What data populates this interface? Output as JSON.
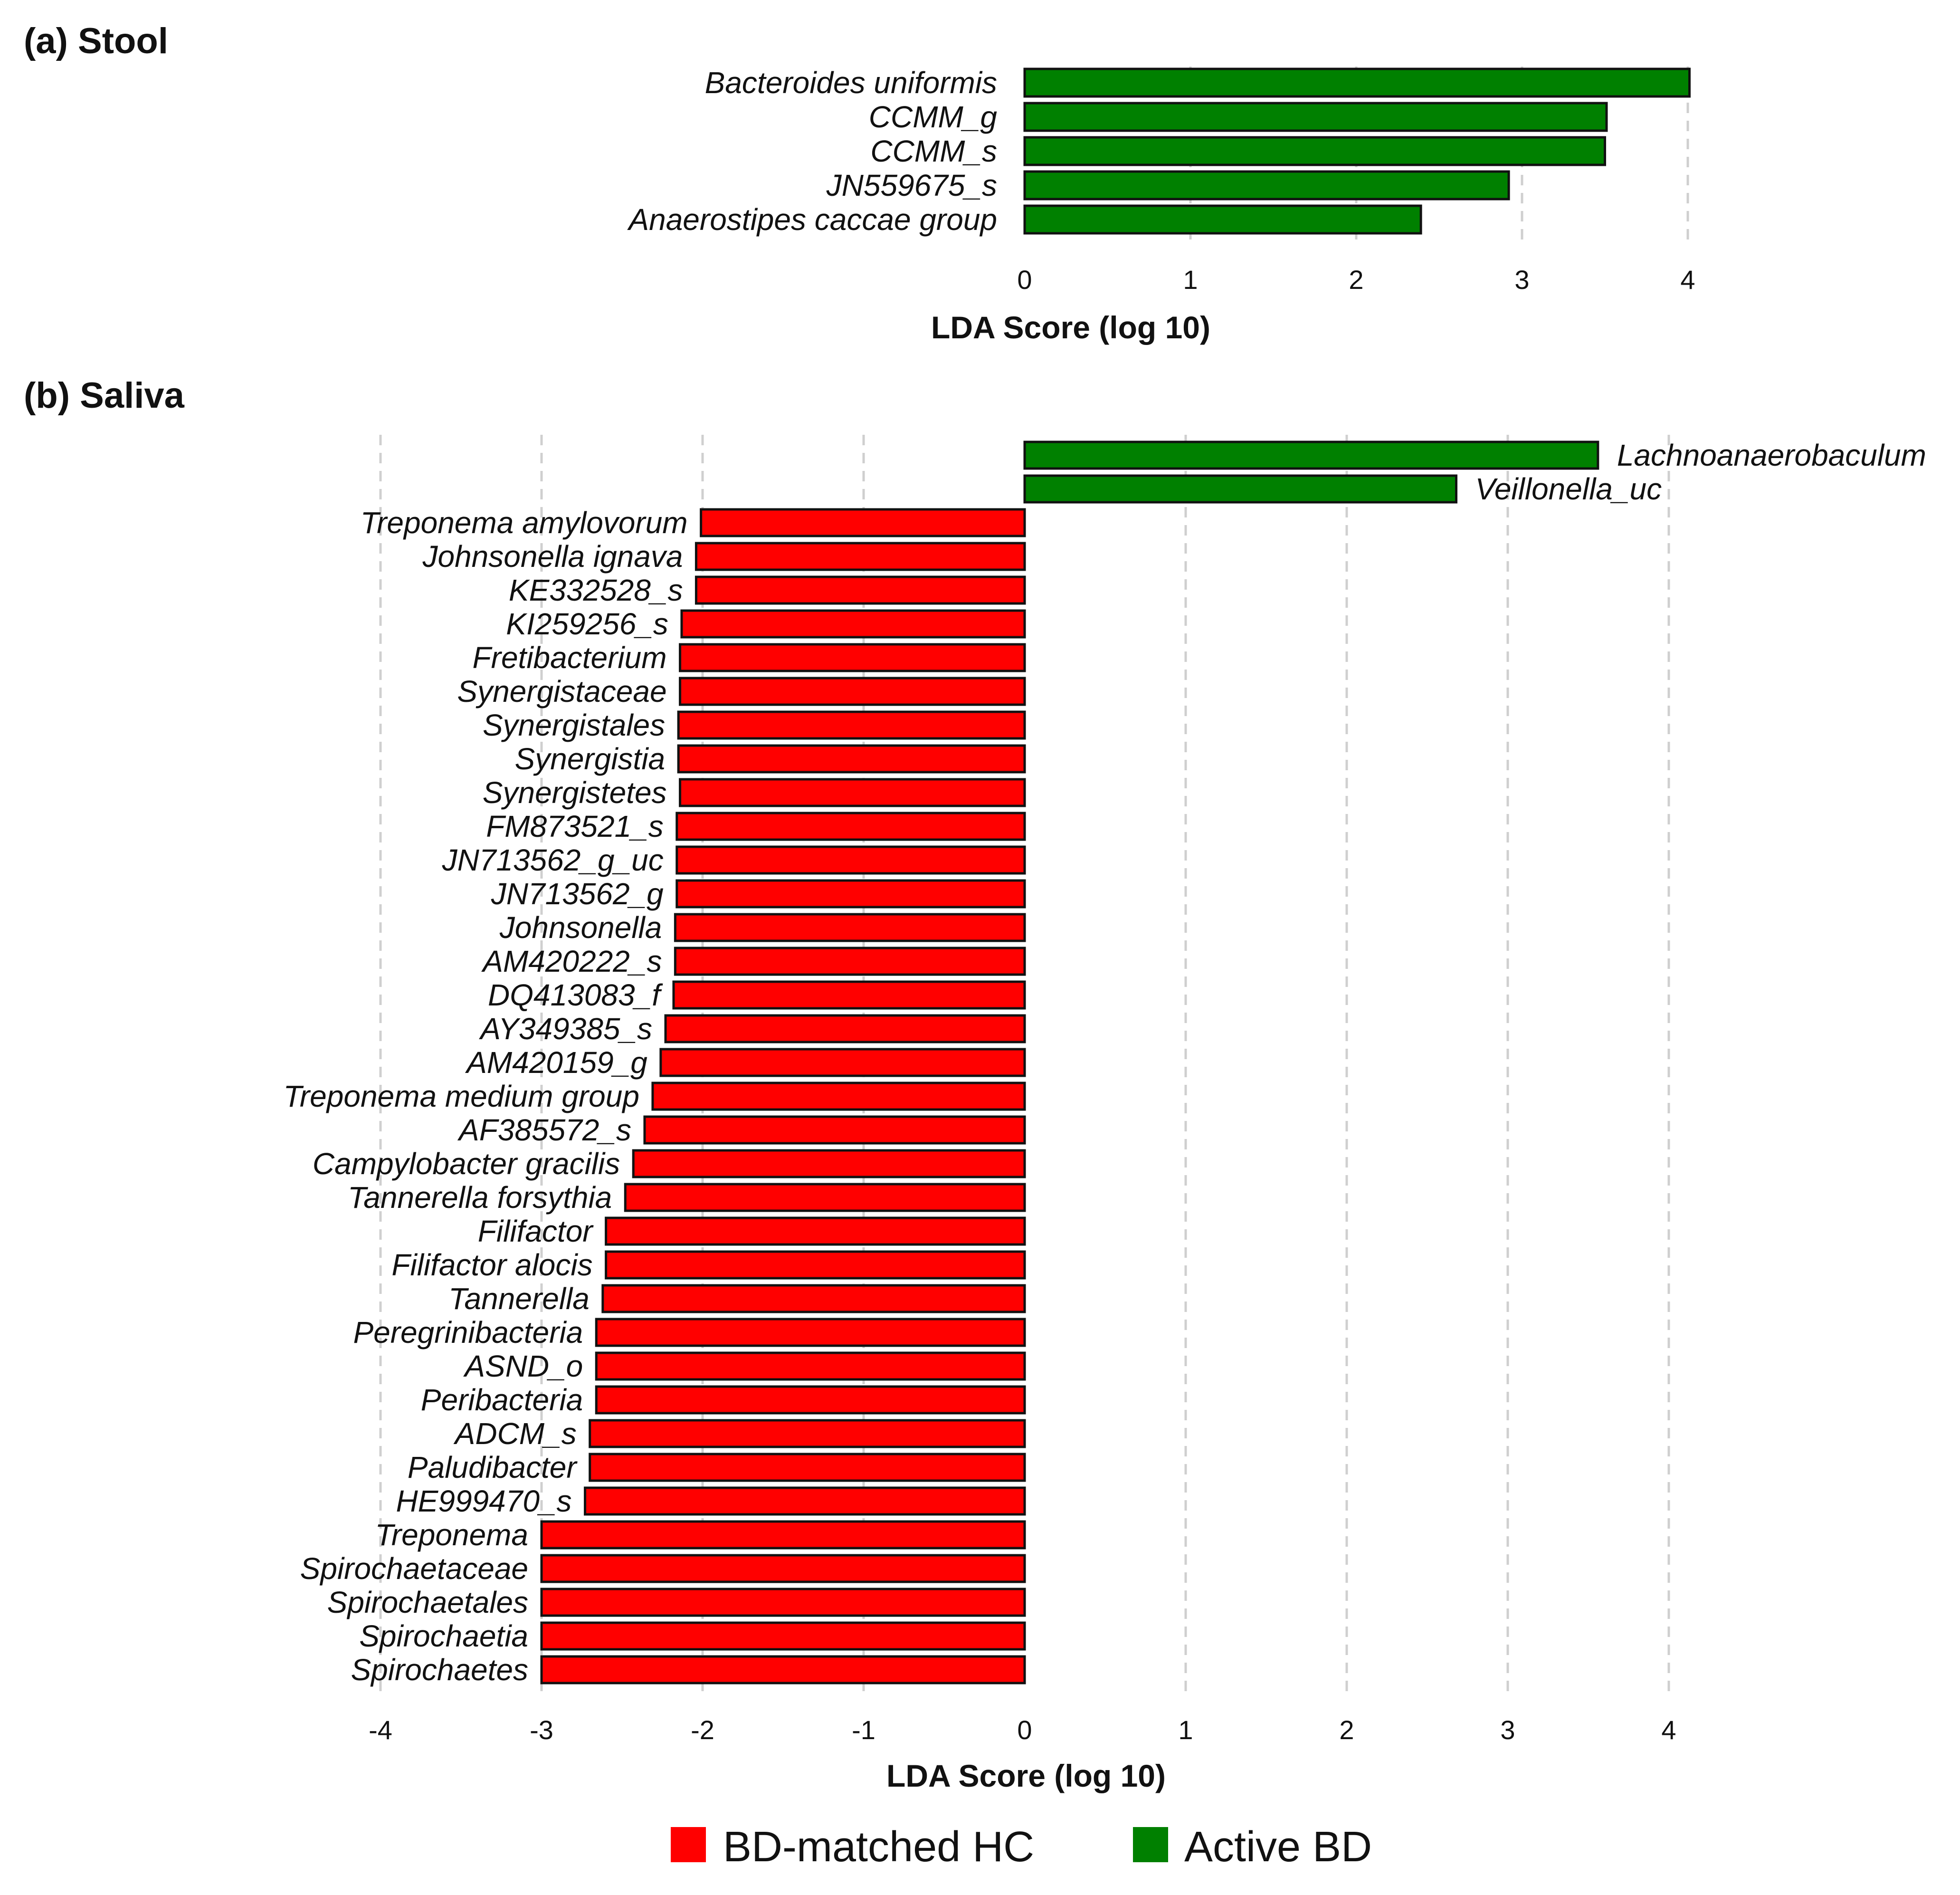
{
  "colors": {
    "hc": "#ff0000",
    "bd": "#008000"
  },
  "chart_data": [
    {
      "type": "bar",
      "orientation": "horizontal",
      "title": "(a) Stool",
      "xlabel": "LDA Score (log 10)",
      "xlim": [
        0,
        4
      ],
      "xticks": [
        0,
        1,
        2,
        3,
        4
      ],
      "categories": [
        "Bacteroides uniformis",
        "CCMM_g",
        "CCMM_s",
        "JN559675_s",
        "Anaerostipes caccae group"
      ],
      "values": [
        4.01,
        3.51,
        3.5,
        2.92,
        2.39
      ],
      "groups": [
        "Active BD",
        "Active BD",
        "Active BD",
        "Active BD",
        "Active BD"
      ]
    },
    {
      "type": "bar",
      "orientation": "horizontal",
      "title": "(b) Saliva",
      "xlabel": "LDA Score (log 10)",
      "xlim": [
        -4,
        4
      ],
      "xticks": [
        -4,
        -3,
        -2,
        -1,
        0,
        1,
        2,
        3,
        4
      ],
      "categories": [
        "Lachnoanaerobaculum",
        "Veillonella_uc",
        "Treponema amylovorum",
        "Johnsonella ignava",
        "KE332528_s",
        "KI259256_s",
        "Fretibacterium",
        "Synergistaceae",
        "Synergistales",
        "Synergistia",
        "Synergistetes",
        "FM873521_s",
        "JN713562_g_uc",
        "JN713562_g",
        "Johnsonella",
        "AM420222_s",
        "DQ413083_f",
        "AY349385_s",
        "AM420159_g",
        "Treponema medium group",
        "AF385572_s",
        "Campylobacter gracilis",
        "Tannerella forsythia",
        "Filifactor",
        "Filifactor alocis",
        "Tannerella",
        "Peregrinibacteria",
        "ASND_o",
        "Peribacteria",
        "ADCM_s",
        "Paludibacter",
        "HE999470_s",
        "Treponema",
        "Spirochaetaceae",
        "Spirochaetales",
        "Spirochaetia",
        "Spirochaetes"
      ],
      "values": [
        3.56,
        2.68,
        -2.01,
        -2.04,
        -2.04,
        -2.13,
        -2.14,
        -2.14,
        -2.15,
        -2.15,
        -2.14,
        -2.16,
        -2.16,
        -2.16,
        -2.17,
        -2.17,
        -2.18,
        -2.23,
        -2.26,
        -2.31,
        -2.36,
        -2.43,
        -2.48,
        -2.6,
        -2.6,
        -2.62,
        -2.66,
        -2.66,
        -2.66,
        -2.7,
        -2.7,
        -2.73,
        -3.0,
        -3.0,
        -3.0,
        -3.0,
        -3.0
      ],
      "groups": [
        "Active BD",
        "Active BD",
        "BD-matched HC",
        "BD-matched HC",
        "BD-matched HC",
        "BD-matched HC",
        "BD-matched HC",
        "BD-matched HC",
        "BD-matched HC",
        "BD-matched HC",
        "BD-matched HC",
        "BD-matched HC",
        "BD-matched HC",
        "BD-matched HC",
        "BD-matched HC",
        "BD-matched HC",
        "BD-matched HC",
        "BD-matched HC",
        "BD-matched HC",
        "BD-matched HC",
        "BD-matched HC",
        "BD-matched HC",
        "BD-matched HC",
        "BD-matched HC",
        "BD-matched HC",
        "BD-matched HC",
        "BD-matched HC",
        "BD-matched HC",
        "BD-matched HC",
        "BD-matched HC",
        "BD-matched HC",
        "BD-matched HC",
        "BD-matched HC",
        "BD-matched HC",
        "BD-matched HC",
        "BD-matched HC",
        "BD-matched HC"
      ]
    }
  ],
  "legend": {
    "items": [
      {
        "label": "BD-matched HC",
        "color_key": "hc"
      },
      {
        "label": "Active BD",
        "color_key": "bd"
      }
    ]
  }
}
